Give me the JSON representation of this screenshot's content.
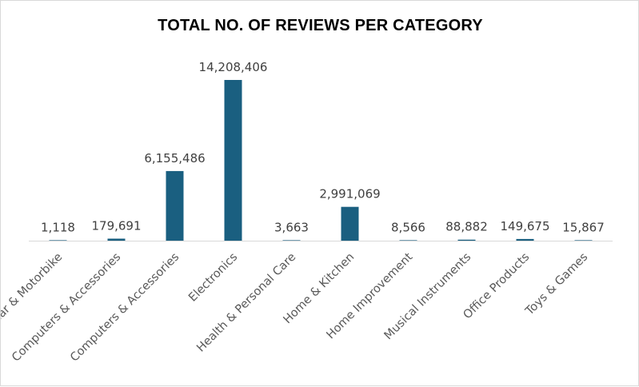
{
  "chart_data": {
    "type": "bar",
    "title": "TOTAL NO. OF REVIEWS PER CATEGORY",
    "categories": [
      "Car & Motorbike",
      "Computers & Accessories",
      "Computers & Accessories",
      "Electronics",
      "Health & Personal Care",
      "Home & Kitchen",
      "Home Improvement",
      "Musical Instruments",
      "Office Products",
      "Toys & Games"
    ],
    "values": [
      1118,
      179691,
      6155486,
      14208406,
      3663,
      2991069,
      8566,
      88882,
      149675,
      15867
    ],
    "data_labels": [
      "1,118",
      "179,691",
      "6,155,486",
      "14,208,406",
      "3,663",
      "2,991,069",
      "8,566",
      "88,882",
      "149,675",
      "15,867"
    ],
    "xlabel": "",
    "ylabel": "",
    "ylim": [
      0,
      14208406
    ],
    "grid": false,
    "legend": "none",
    "bar_color": "#1a5f80"
  }
}
